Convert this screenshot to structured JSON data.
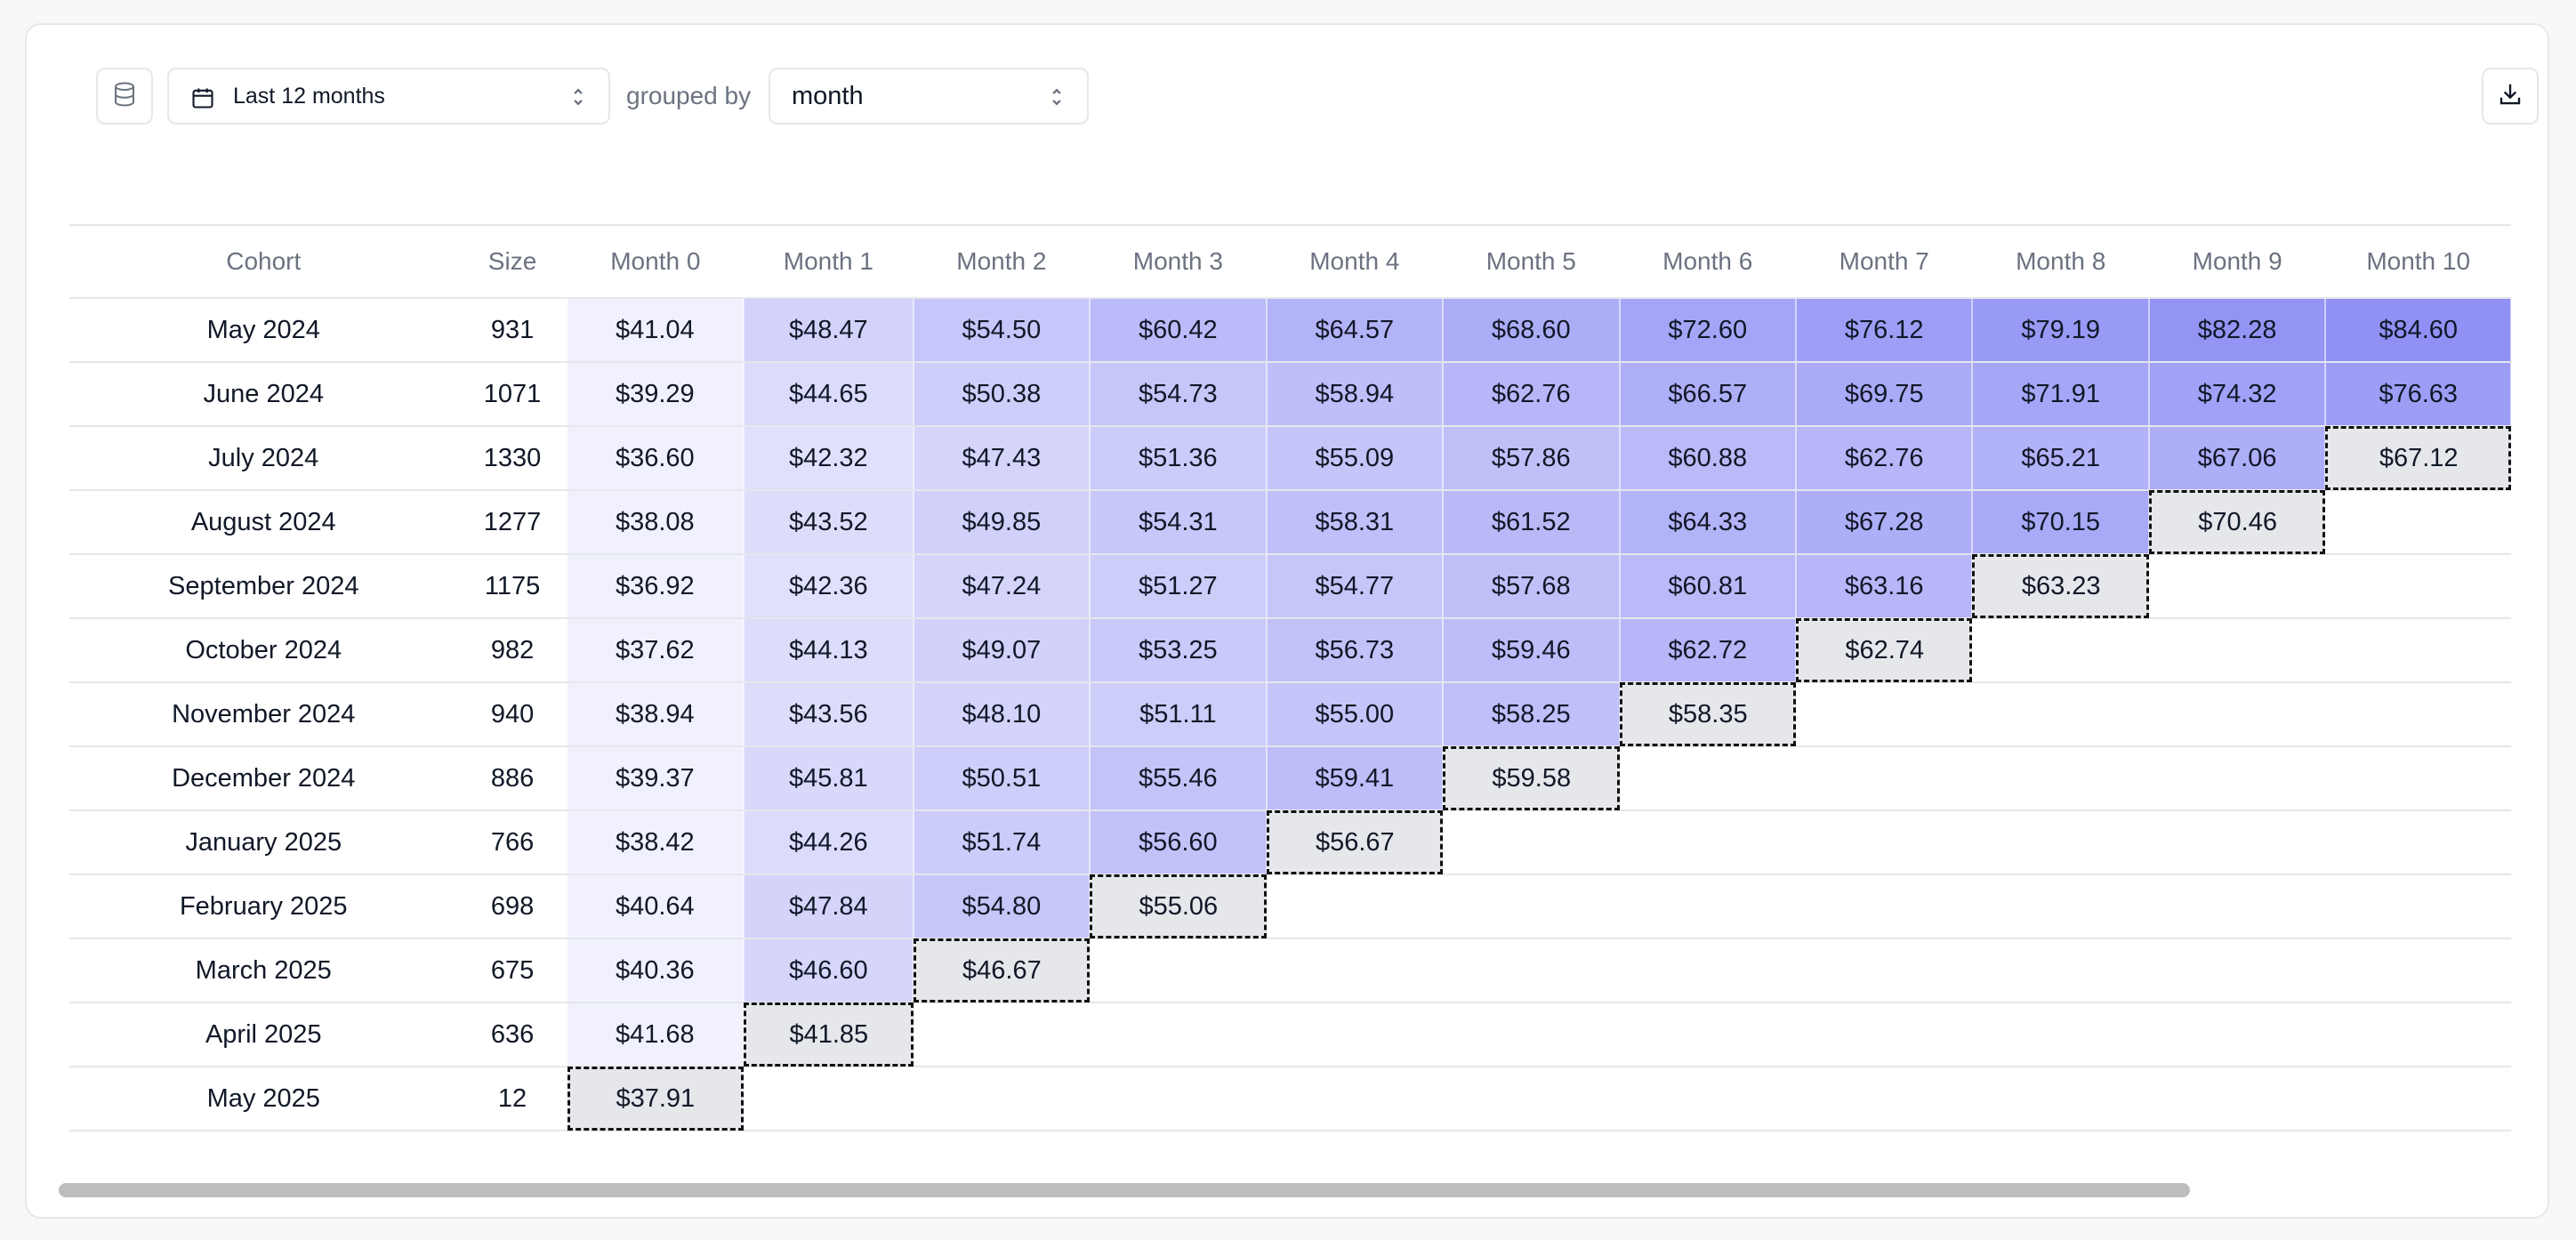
{
  "toolbar": {
    "date_range_label": "Last 12 months",
    "grouped_by_text": "grouped by",
    "group_value": "month"
  },
  "icons": {
    "database": "database-icon",
    "calendar": "calendar-icon",
    "chevrons": "chevron-up-down-icon",
    "download": "download-icon"
  },
  "colors": {
    "heat_low": "#f1f1fd",
    "heat_high": "#8f8ff5",
    "projected_bg": "#e5e7eb"
  },
  "table": {
    "columns": [
      "Cohort",
      "Size",
      "Month 0",
      "Month 1",
      "Month 2",
      "Month 3",
      "Month 4",
      "Month 5",
      "Month 6",
      "Month 7",
      "Month 8",
      "Month 9",
      "Month 10"
    ],
    "rows": [
      {
        "cohort": "May 2024",
        "size": "931",
        "values": [
          "$41.04",
          "$48.47",
          "$54.50",
          "$60.42",
          "$64.57",
          "$68.60",
          "$72.60",
          "$76.12",
          "$79.19",
          "$82.28",
          "$84.60"
        ],
        "projected_index": null
      },
      {
        "cohort": "June 2024",
        "size": "1071",
        "values": [
          "$39.29",
          "$44.65",
          "$50.38",
          "$54.73",
          "$58.94",
          "$62.76",
          "$66.57",
          "$69.75",
          "$71.91",
          "$74.32",
          "$76.63"
        ],
        "projected_index": null
      },
      {
        "cohort": "July 2024",
        "size": "1330",
        "values": [
          "$36.60",
          "$42.32",
          "$47.43",
          "$51.36",
          "$55.09",
          "$57.86",
          "$60.88",
          "$62.76",
          "$65.21",
          "$67.06",
          "$67.12"
        ],
        "projected_index": 10
      },
      {
        "cohort": "August 2024",
        "size": "1277",
        "values": [
          "$38.08",
          "$43.52",
          "$49.85",
          "$54.31",
          "$58.31",
          "$61.52",
          "$64.33",
          "$67.28",
          "$70.15",
          "$70.46"
        ],
        "projected_index": 9
      },
      {
        "cohort": "September 2024",
        "size": "1175",
        "values": [
          "$36.92",
          "$42.36",
          "$47.24",
          "$51.27",
          "$54.77",
          "$57.68",
          "$60.81",
          "$63.16",
          "$63.23"
        ],
        "projected_index": 8
      },
      {
        "cohort": "October 2024",
        "size": "982",
        "values": [
          "$37.62",
          "$44.13",
          "$49.07",
          "$53.25",
          "$56.73",
          "$59.46",
          "$62.72",
          "$62.74"
        ],
        "projected_index": 7
      },
      {
        "cohort": "November 2024",
        "size": "940",
        "values": [
          "$38.94",
          "$43.56",
          "$48.10",
          "$51.11",
          "$55.00",
          "$58.25",
          "$58.35"
        ],
        "projected_index": 6
      },
      {
        "cohort": "December 2024",
        "size": "886",
        "values": [
          "$39.37",
          "$45.81",
          "$50.51",
          "$55.46",
          "$59.41",
          "$59.58"
        ],
        "projected_index": 5
      },
      {
        "cohort": "January 2025",
        "size": "766",
        "values": [
          "$38.42",
          "$44.26",
          "$51.74",
          "$56.60",
          "$56.67"
        ],
        "projected_index": 4
      },
      {
        "cohort": "February 2025",
        "size": "698",
        "values": [
          "$40.64",
          "$47.84",
          "$54.80",
          "$55.06"
        ],
        "projected_index": 3
      },
      {
        "cohort": "March 2025",
        "size": "675",
        "values": [
          "$40.36",
          "$46.60",
          "$46.67"
        ],
        "projected_index": 2
      },
      {
        "cohort": "April 2025",
        "size": "636",
        "values": [
          "$41.68",
          "$41.85"
        ],
        "projected_index": 1
      },
      {
        "cohort": "May 2025",
        "size": "12",
        "values": [
          "$37.91"
        ],
        "projected_index": 0
      }
    ]
  }
}
